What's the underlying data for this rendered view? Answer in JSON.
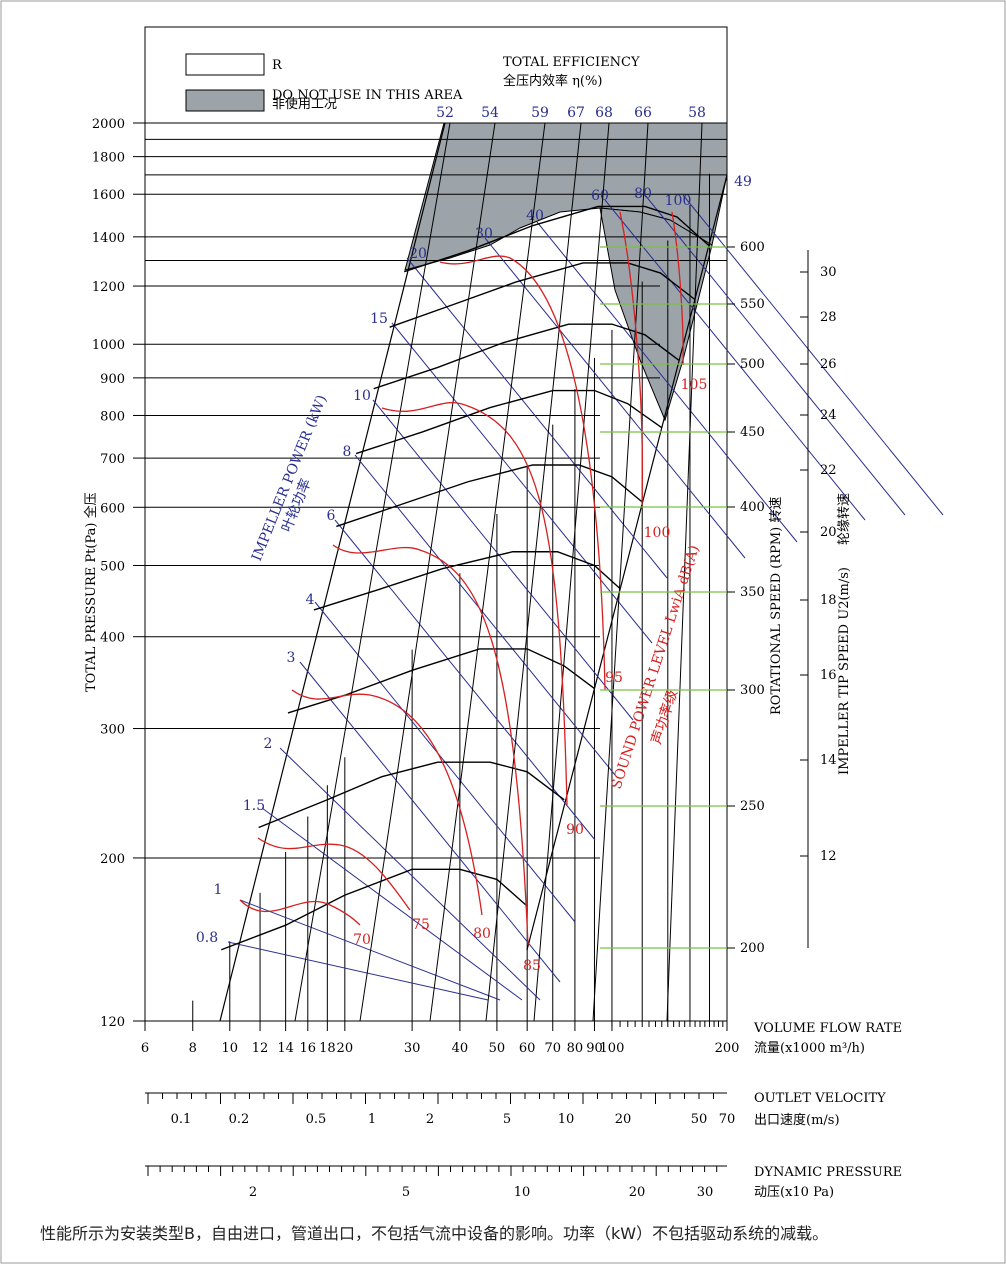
{
  "chart_data": {
    "type": "line",
    "title": "TOTAL EFFICIENCY",
    "title_cn": "全压内效率 η(%)",
    "legend": {
      "r_label": "R",
      "grey_label": "DO NOT USE IN THIS AREA",
      "grey_label_cn": "非使用工况"
    },
    "y_axis": {
      "label": "TOTAL PRESSURE Pt(Pa) 全压",
      "scale": "log",
      "range": [
        120,
        2000
      ],
      "ticks": [
        "120",
        "200",
        "300",
        "400",
        "500",
        "600",
        "700",
        "800",
        "900",
        "1000",
        "1200",
        "1400",
        "1600",
        "1800",
        "2000"
      ]
    },
    "x_axis": {
      "label": "VOLUME FLOW RATE",
      "label_cn": "流量(x1000 m³/h)",
      "scale": "log",
      "range": [
        6,
        200
      ],
      "ticks": [
        "6",
        "8",
        "10",
        "12",
        "14",
        "16",
        "18",
        "20",
        "30",
        "40",
        "50",
        "60",
        "70",
        "80",
        "90",
        "100",
        "200"
      ]
    },
    "velocity_axis": {
      "label": "OUTLET VELOCITY",
      "label_cn": "出口速度(m/s)",
      "ticks": [
        "0.1",
        "0.2",
        "0.5",
        "1",
        "2",
        "5",
        "10",
        "20",
        "50",
        "70"
      ]
    },
    "dynamic_axis": {
      "label": "DYNAMIC PRESSURE",
      "label_cn": "动压(x10 Pa)",
      "ticks": [
        "2",
        "5",
        "10",
        "20",
        "30"
      ]
    },
    "rpm_axis": {
      "label": "ROTATIONAL SPEED (RPM) 转速",
      "ticks": [
        "200",
        "250",
        "300",
        "350",
        "400",
        "450",
        "500",
        "550",
        "600"
      ]
    },
    "tip_axis": {
      "label": "IMPELLER TIP SPEED U2(m/s)",
      "label_cn": "轮缘转速",
      "ticks": [
        "12",
        "14",
        "16",
        "18",
        "20",
        "22",
        "24",
        "26",
        "28",
        "30"
      ]
    },
    "efficiency_labels": [
      "52",
      "54",
      "59",
      "67",
      "68",
      "66",
      "58",
      "49"
    ],
    "power_label": "IMPELLER POWER (kW)",
    "power_label_cn": "叶轮功率",
    "power_values": [
      "0.8",
      "1",
      "1.5",
      "2",
      "3",
      "4",
      "6",
      "8",
      "10",
      "15",
      "20",
      "30",
      "40",
      "60",
      "80",
      "100"
    ],
    "sound_label": "SOUND POWER LEVEL LwiA dB(A)",
    "sound_label_cn": "声功率级",
    "sound_values": [
      "70",
      "75",
      "80",
      "85",
      "90",
      "95",
      "100",
      "105"
    ],
    "series": [
      {
        "name": "200",
        "points": [
          [
            9.5,
            150
          ],
          [
            14,
            162
          ],
          [
            20,
            178
          ],
          [
            30,
            193
          ],
          [
            40,
            193
          ],
          [
            50,
            187
          ],
          [
            60,
            172
          ]
        ]
      },
      {
        "name": "250",
        "points": [
          [
            11.9,
            220
          ],
          [
            18,
            240
          ],
          [
            25,
            258
          ],
          [
            35,
            270
          ],
          [
            48,
            270
          ],
          [
            60,
            262
          ],
          [
            75,
            240
          ]
        ]
      },
      {
        "name": "300",
        "points": [
          [
            14.2,
            315
          ],
          [
            20,
            333
          ],
          [
            30,
            360
          ],
          [
            45,
            385
          ],
          [
            60,
            385
          ],
          [
            75,
            365
          ],
          [
            90,
            340
          ]
        ]
      },
      {
        "name": "350",
        "points": [
          [
            16.6,
            435
          ],
          [
            24,
            462
          ],
          [
            36,
            495
          ],
          [
            55,
            522
          ],
          [
            72,
            522
          ],
          [
            90,
            500
          ],
          [
            105,
            465
          ]
        ]
      },
      {
        "name": "400",
        "points": [
          [
            19,
            565
          ],
          [
            28,
            605
          ],
          [
            42,
            650
          ],
          [
            62,
            685
          ],
          [
            82,
            685
          ],
          [
            100,
            660
          ],
          [
            120,
            610
          ]
        ]
      },
      {
        "name": "450",
        "points": [
          [
            21.4,
            710
          ],
          [
            32,
            760
          ],
          [
            48,
            820
          ],
          [
            70,
            865
          ],
          [
            90,
            865
          ],
          [
            110,
            830
          ],
          [
            135,
            770
          ]
        ]
      },
      {
        "name": "500",
        "points": [
          [
            23.8,
            870
          ],
          [
            35,
            930
          ],
          [
            52,
            1005
          ],
          [
            77,
            1065
          ],
          [
            100,
            1065
          ],
          [
            122,
            1030
          ],
          [
            150,
            950
          ]
        ]
      },
      {
        "name": "550",
        "points": [
          [
            26.2,
            1055
          ],
          [
            38,
            1130
          ],
          [
            56,
            1215
          ],
          [
            84,
            1290
          ],
          [
            110,
            1290
          ],
          [
            134,
            1250
          ],
          [
            165,
            1150
          ]
        ]
      },
      {
        "name": "600",
        "points": [
          [
            28.6,
            1255
          ],
          [
            42,
            1340
          ],
          [
            62,
            1450
          ],
          [
            92,
            1540
          ],
          [
            122,
            1540
          ],
          [
            148,
            1490
          ],
          [
            180,
            1360
          ]
        ]
      }
    ]
  },
  "footnote": "性能所示为安装类型B，自由进口，管道出口，不包括气流中设备的影响。功率（kW）不包括驱动系统的减载。"
}
